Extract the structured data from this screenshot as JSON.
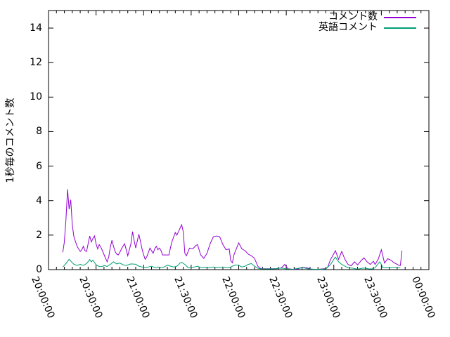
{
  "chart_data": {
    "type": "line",
    "title": "",
    "xlabel": "",
    "ylabel": "1秒毎のコメント数",
    "grid": false,
    "legend_position": "top-right-inside",
    "axis_color": "#000000",
    "background_color": "#ffffff",
    "x_axis": {
      "unit": "time (hh:mm:ss)",
      "range_minutes": [
        0,
        240
      ],
      "major_tick_every_minutes": 30,
      "minor_tick_every_minutes": 5,
      "tick_labels": [
        "20:00:00",
        "20:30:00",
        "21:00:00",
        "21:30:00",
        "22:00:00",
        "22:30:00",
        "23:00:00",
        "23:30:00",
        "00:00:00"
      ],
      "tick_label_rotation_deg": 67
    },
    "y_axis": {
      "range": [
        0,
        15
      ],
      "tick_labels": [
        "0",
        "2",
        "4",
        "6",
        "8",
        "10",
        "12",
        "14"
      ],
      "tick_values": [
        0,
        2,
        4,
        6,
        8,
        10,
        12,
        14
      ]
    },
    "series": [
      {
        "name": "コメント数",
        "color": "#9400d3",
        "points_minutes_value": [
          [
            9,
            1.0
          ],
          [
            10,
            1.6
          ],
          [
            11,
            2.9
          ],
          [
            12,
            4.65
          ],
          [
            13,
            3.5
          ],
          [
            14,
            4.05
          ],
          [
            15,
            2.6
          ],
          [
            16,
            1.9
          ],
          [
            18,
            1.35
          ],
          [
            20,
            1.05
          ],
          [
            21,
            1.15
          ],
          [
            22,
            1.35
          ],
          [
            23,
            1.1
          ],
          [
            24,
            1.05
          ],
          [
            26,
            1.95
          ],
          [
            27,
            1.6
          ],
          [
            28,
            1.8
          ],
          [
            29,
            1.95
          ],
          [
            30,
            1.5
          ],
          [
            31,
            1.2
          ],
          [
            32,
            1.45
          ],
          [
            33,
            1.3
          ],
          [
            34,
            1.1
          ],
          [
            36,
            0.65
          ],
          [
            37,
            0.45
          ],
          [
            38,
            0.75
          ],
          [
            39,
            1.3
          ],
          [
            40,
            1.7
          ],
          [
            41,
            1.35
          ],
          [
            42,
            1.05
          ],
          [
            43,
            0.9
          ],
          [
            44,
            0.85
          ],
          [
            45,
            1.0
          ],
          [
            46,
            1.2
          ],
          [
            47,
            1.35
          ],
          [
            48,
            1.5
          ],
          [
            49,
            1.15
          ],
          [
            50,
            0.8
          ],
          [
            52,
            1.5
          ],
          [
            53,
            2.2
          ],
          [
            54,
            1.7
          ],
          [
            55,
            1.25
          ],
          [
            56,
            1.65
          ],
          [
            57,
            2.05
          ],
          [
            58,
            1.65
          ],
          [
            59,
            1.2
          ],
          [
            60,
            0.85
          ],
          [
            61,
            0.6
          ],
          [
            62,
            0.75
          ],
          [
            63,
            1.0
          ],
          [
            64,
            1.25
          ],
          [
            65,
            1.1
          ],
          [
            66,
            0.95
          ],
          [
            67,
            1.2
          ],
          [
            68,
            1.35
          ],
          [
            69,
            1.15
          ],
          [
            70,
            1.25
          ],
          [
            71,
            1.1
          ],
          [
            72,
            0.85
          ],
          [
            74,
            0.85
          ],
          [
            76,
            0.85
          ],
          [
            77,
            1.3
          ],
          [
            78,
            1.65
          ],
          [
            79,
            1.9
          ],
          [
            80,
            2.15
          ],
          [
            81,
            2.0
          ],
          [
            82,
            2.2
          ],
          [
            83,
            2.4
          ],
          [
            84,
            2.6
          ],
          [
            85,
            2.2
          ],
          [
            86,
            0.95
          ],
          [
            87,
            0.8
          ],
          [
            89,
            1.25
          ],
          [
            91,
            1.2
          ],
          [
            93,
            1.4
          ],
          [
            94,
            1.45
          ],
          [
            96,
            0.85
          ],
          [
            98,
            0.65
          ],
          [
            100,
            0.95
          ],
          [
            102,
            1.5
          ],
          [
            104,
            1.9
          ],
          [
            106,
            1.95
          ],
          [
            108,
            1.9
          ],
          [
            110,
            1.45
          ],
          [
            112,
            1.15
          ],
          [
            114,
            1.2
          ],
          [
            115,
            0.5
          ],
          [
            116,
            0.4
          ],
          [
            117,
            0.85
          ],
          [
            118,
            1.1
          ],
          [
            120,
            1.55
          ],
          [
            122,
            1.2
          ],
          [
            124,
            1.1
          ],
          [
            126,
            0.9
          ],
          [
            128,
            0.8
          ],
          [
            130,
            0.65
          ],
          [
            132,
            0.2
          ],
          [
            134,
            0.05
          ],
          [
            137,
            0.05
          ],
          [
            140,
            0.05
          ],
          [
            144,
            0.05
          ],
          [
            147,
            0.1
          ],
          [
            149,
            0.3
          ],
          [
            151,
            0.05
          ],
          [
            154,
            0.02
          ],
          [
            157,
            0.02
          ],
          [
            159,
            0.1
          ],
          [
            161,
            0.12
          ],
          [
            163,
            0.1
          ],
          [
            166,
            0.02
          ],
          [
            170,
            0.02
          ],
          [
            174,
            0.05
          ],
          [
            176,
            0.1
          ],
          [
            178,
            0.6
          ],
          [
            179,
            0.75
          ],
          [
            181,
            1.1
          ],
          [
            183,
            0.6
          ],
          [
            185,
            1.05
          ],
          [
            187,
            0.6
          ],
          [
            189,
            0.3
          ],
          [
            191,
            0.22
          ],
          [
            193,
            0.45
          ],
          [
            195,
            0.27
          ],
          [
            197,
            0.5
          ],
          [
            199,
            0.68
          ],
          [
            201,
            0.45
          ],
          [
            203,
            0.3
          ],
          [
            205,
            0.48
          ],
          [
            206,
            0.3
          ],
          [
            208,
            0.6
          ],
          [
            210,
            1.15
          ],
          [
            212,
            0.38
          ],
          [
            214,
            0.63
          ],
          [
            216,
            0.55
          ],
          [
            218,
            0.4
          ],
          [
            220,
            0.3
          ],
          [
            221,
            0.25
          ],
          [
            222,
            0.24
          ],
          [
            223,
            1.1
          ]
        ]
      },
      {
        "name": "英語コメント",
        "color": "#009e73",
        "points_minutes_value": [
          [
            9,
            0.15
          ],
          [
            11,
            0.35
          ],
          [
            13,
            0.6
          ],
          [
            15,
            0.4
          ],
          [
            16,
            0.31
          ],
          [
            18,
            0.24
          ],
          [
            20,
            0.31
          ],
          [
            22,
            0.24
          ],
          [
            24,
            0.35
          ],
          [
            26,
            0.58
          ],
          [
            27,
            0.45
          ],
          [
            28,
            0.55
          ],
          [
            30,
            0.28
          ],
          [
            32,
            0.18
          ],
          [
            34,
            0.18
          ],
          [
            35,
            0.24
          ],
          [
            37,
            0.18
          ],
          [
            39,
            0.3
          ],
          [
            41,
            0.45
          ],
          [
            43,
            0.33
          ],
          [
            45,
            0.38
          ],
          [
            47,
            0.28
          ],
          [
            49,
            0.24
          ],
          [
            52,
            0.33
          ],
          [
            55,
            0.31
          ],
          [
            57,
            0.2
          ],
          [
            59,
            0.15
          ],
          [
            61,
            0.12
          ],
          [
            63,
            0.15
          ],
          [
            65,
            0.2
          ],
          [
            67,
            0.12
          ],
          [
            69,
            0.15
          ],
          [
            71,
            0.12
          ],
          [
            73,
            0.15
          ],
          [
            75,
            0.26
          ],
          [
            77,
            0.2
          ],
          [
            79,
            0.15
          ],
          [
            81,
            0.2
          ],
          [
            83,
            0.38
          ],
          [
            84,
            0.42
          ],
          [
            86,
            0.3
          ],
          [
            88,
            0.12
          ],
          [
            90,
            0.12
          ],
          [
            92,
            0.15
          ],
          [
            94,
            0.2
          ],
          [
            96,
            0.12
          ],
          [
            98,
            0.1
          ],
          [
            100,
            0.12
          ],
          [
            102,
            0.12
          ],
          [
            104,
            0.15
          ],
          [
            106,
            0.12
          ],
          [
            108,
            0.12
          ],
          [
            110,
            0.15
          ],
          [
            112,
            0.12
          ],
          [
            114,
            0.1
          ],
          [
            116,
            0.2
          ],
          [
            118,
            0.27
          ],
          [
            120,
            0.25
          ],
          [
            122,
            0.15
          ],
          [
            124,
            0.2
          ],
          [
            126,
            0.3
          ],
          [
            128,
            0.35
          ],
          [
            130,
            0.2
          ],
          [
            132,
            0.08
          ],
          [
            134,
            0.04
          ],
          [
            138,
            0.04
          ],
          [
            142,
            0.04
          ],
          [
            146,
            0.08
          ],
          [
            148,
            0.08
          ],
          [
            150,
            0.04
          ],
          [
            154,
            0.02
          ],
          [
            158,
            0.08
          ],
          [
            161,
            0.1
          ],
          [
            164,
            0.04
          ],
          [
            168,
            0.02
          ],
          [
            172,
            0.02
          ],
          [
            175,
            0.04
          ],
          [
            178,
            0.3
          ],
          [
            180,
            0.6
          ],
          [
            181,
            0.72
          ],
          [
            183,
            0.45
          ],
          [
            185,
            0.3
          ],
          [
            187,
            0.2
          ],
          [
            189,
            0.1
          ],
          [
            192,
            0.08
          ],
          [
            194,
            0.04
          ],
          [
            196,
            0.04
          ],
          [
            198,
            0.08
          ],
          [
            200,
            0.08
          ],
          [
            202,
            0.04
          ],
          [
            204,
            0.04
          ],
          [
            206,
            0.1
          ],
          [
            208,
            0.35
          ],
          [
            209,
            0.45
          ],
          [
            210,
            0.3
          ],
          [
            211,
            0.1
          ],
          [
            213,
            0.1
          ],
          [
            215,
            0.1
          ],
          [
            217,
            0.12
          ],
          [
            219,
            0.12
          ],
          [
            221,
            0.12
          ],
          [
            222,
            0.1
          ]
        ]
      }
    ]
  }
}
